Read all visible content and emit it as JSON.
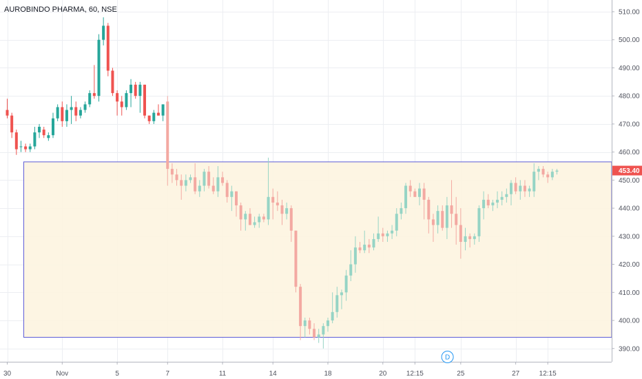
{
  "chart_data": {
    "type": "candlestick",
    "title": "AUROBINDO PHARMA, 60, NSE",
    "symbol": "AUROBINDO PHARMA",
    "interval": "60",
    "exchange": "NSE",
    "ylim": [
      386,
      515
    ],
    "y_ticks": [
      "510.00",
      "500.00",
      "490.00",
      "480.00",
      "470.00",
      "460.00",
      "450.00",
      "440.00",
      "430.00",
      "420.00",
      "410.00",
      "400.00",
      "390.00"
    ],
    "x_ticks": [
      {
        "label": "30",
        "index": 0
      },
      {
        "label": "Nov",
        "index": 12
      },
      {
        "label": "5",
        "index": 24
      },
      {
        "label": "7",
        "index": 35
      },
      {
        "label": "11",
        "index": 47
      },
      {
        "label": "14",
        "index": 58
      },
      {
        "label": "18",
        "index": 70
      },
      {
        "label": "20",
        "index": 82
      },
      {
        "label": "12:15",
        "index": 89
      },
      {
        "label": "25",
        "index": 99
      },
      {
        "label": "27",
        "index": 111
      },
      {
        "label": "12:15",
        "index": 118
      }
    ],
    "last_price": "453.40",
    "date_marker": {
      "label": "D",
      "index": 94
    },
    "zone": {
      "top": 456.5,
      "bottom": 394,
      "start_index": 3
    },
    "colors": {
      "up": "#26a69a",
      "down": "#ef5350",
      "up_light": "#96d4c5",
      "down_light": "#f3a9a2",
      "zone_fill": "#fdf4e0",
      "zone_border": "#5b5bd6",
      "grid": "#eceef2",
      "tag": "#ef5350"
    },
    "candles": [
      [
        0,
        475,
        479,
        472,
        473
      ],
      [
        1,
        473,
        474,
        465,
        467
      ],
      [
        2,
        467,
        468,
        459,
        461
      ],
      [
        3,
        462,
        464,
        460,
        462
      ],
      [
        4,
        462,
        463,
        460,
        461
      ],
      [
        5,
        461,
        463,
        460,
        462
      ],
      [
        6,
        462,
        469,
        461,
        467
      ],
      [
        7,
        467,
        470,
        465,
        469
      ],
      [
        8,
        468,
        469,
        465,
        466
      ],
      [
        9,
        465,
        467,
        464,
        466
      ],
      [
        10,
        466,
        474,
        465,
        472
      ],
      [
        11,
        472,
        477,
        471,
        476
      ],
      [
        12,
        476,
        478,
        469,
        471
      ],
      [
        13,
        471,
        477,
        469,
        475
      ],
      [
        14,
        475,
        480,
        470,
        476
      ],
      [
        15,
        476,
        478,
        471,
        473
      ],
      [
        16,
        473,
        476,
        472,
        475
      ],
      [
        17,
        475,
        478,
        474,
        477
      ],
      [
        18,
        477,
        482,
        476,
        481
      ],
      [
        19,
        481,
        491,
        479,
        480
      ],
      [
        20,
        480,
        502,
        478,
        500
      ],
      [
        21,
        500,
        508,
        498,
        505
      ],
      [
        22,
        505,
        506,
        487,
        489
      ],
      [
        23,
        489,
        490,
        480,
        481
      ],
      [
        24,
        481,
        482,
        473,
        478
      ],
      [
        25,
        478,
        480,
        473,
        476
      ],
      [
        26,
        476,
        482,
        475,
        481
      ],
      [
        27,
        481,
        486,
        476,
        484
      ],
      [
        28,
        484,
        485,
        479,
        480
      ],
      [
        29,
        480,
        485,
        474,
        484
      ],
      [
        30,
        484,
        484,
        472,
        473
      ],
      [
        31,
        473,
        473,
        470,
        471
      ],
      [
        32,
        471,
        475,
        470,
        474
      ],
      [
        33,
        474,
        477,
        473,
        473
      ],
      [
        34,
        473,
        477,
        471,
        477
      ],
      [
        35,
        478,
        480,
        448,
        454
      ],
      [
        36,
        454,
        456,
        449,
        452
      ],
      [
        37,
        452,
        454,
        448,
        450
      ],
      [
        38,
        450,
        452,
        443,
        448
      ],
      [
        39,
        448,
        452,
        446,
        450
      ],
      [
        40,
        450,
        452,
        449,
        451
      ],
      [
        41,
        451,
        456,
        445,
        446
      ],
      [
        42,
        446,
        450,
        444,
        448
      ],
      [
        43,
        448,
        454,
        446,
        453
      ],
      [
        44,
        453,
        455,
        447,
        448
      ],
      [
        45,
        448,
        451,
        445,
        446
      ],
      [
        46,
        446,
        455,
        444,
        451
      ],
      [
        47,
        451,
        453,
        448,
        449
      ],
      [
        48,
        449,
        450,
        442,
        444
      ],
      [
        49,
        444,
        448,
        439,
        446
      ],
      [
        50,
        446,
        446,
        437,
        441
      ],
      [
        51,
        441,
        442,
        432,
        436
      ],
      [
        52,
        436,
        439,
        432,
        438
      ],
      [
        53,
        438,
        440,
        434,
        434
      ],
      [
        54,
        434,
        437,
        433,
        435
      ],
      [
        55,
        435,
        438,
        433,
        437
      ],
      [
        56,
        437,
        438,
        435,
        436
      ],
      [
        57,
        436,
        458,
        434,
        444
      ],
      [
        58,
        444,
        447,
        436,
        442
      ],
      [
        59,
        442,
        446,
        439,
        441
      ],
      [
        60,
        441,
        443,
        434,
        438
      ],
      [
        61,
        438,
        442,
        436,
        440
      ],
      [
        62,
        440,
        441,
        428,
        432
      ],
      [
        63,
        432,
        432,
        410,
        412
      ],
      [
        64,
        412,
        413,
        393,
        398
      ],
      [
        65,
        398,
        401,
        394,
        400
      ],
      [
        66,
        400,
        401,
        395,
        397
      ],
      [
        67,
        397,
        399,
        393,
        394
      ],
      [
        68,
        394,
        397,
        392,
        395
      ],
      [
        69,
        395,
        399,
        390,
        398
      ],
      [
        70,
        398,
        401,
        396,
        400
      ],
      [
        71,
        400,
        410,
        399,
        403
      ],
      [
        72,
        403,
        412,
        401,
        409
      ],
      [
        73,
        409,
        411,
        404,
        410
      ],
      [
        74,
        410,
        418,
        407,
        416
      ],
      [
        75,
        416,
        425,
        414,
        420
      ],
      [
        76,
        420,
        430,
        417,
        426
      ],
      [
        77,
        426,
        428,
        424,
        425
      ],
      [
        78,
        425,
        432,
        424,
        427
      ],
      [
        79,
        427,
        429,
        424,
        426
      ],
      [
        80,
        426,
        431,
        425,
        429
      ],
      [
        81,
        429,
        437,
        428,
        431
      ],
      [
        82,
        431,
        433,
        428,
        430
      ],
      [
        83,
        430,
        432,
        428,
        431
      ],
      [
        84,
        431,
        434,
        429,
        432
      ],
      [
        85,
        432,
        440,
        430,
        438
      ],
      [
        86,
        438,
        442,
        436,
        440
      ],
      [
        87,
        440,
        449,
        438,
        448
      ],
      [
        88,
        448,
        450,
        444,
        446
      ],
      [
        89,
        446,
        447,
        444,
        444
      ],
      [
        90,
        444,
        449,
        441,
        447
      ],
      [
        91,
        447,
        449,
        436,
        443
      ],
      [
        92,
        443,
        444,
        431,
        436
      ],
      [
        93,
        436,
        438,
        428,
        434
      ],
      [
        94,
        434,
        441,
        431,
        439
      ],
      [
        95,
        439,
        441,
        432,
        433
      ],
      [
        96,
        433,
        444,
        429,
        441
      ],
      [
        97,
        441,
        450,
        433,
        438
      ],
      [
        98,
        438,
        444,
        427,
        434
      ],
      [
        99,
        434,
        440,
        422,
        428
      ],
      [
        100,
        428,
        433,
        425,
        430
      ],
      [
        101,
        430,
        431,
        426,
        429
      ],
      [
        102,
        429,
        431,
        427,
        430
      ],
      [
        103,
        430,
        441,
        428,
        440
      ],
      [
        104,
        440,
        446,
        436,
        443
      ],
      [
        105,
        443,
        445,
        440,
        441
      ],
      [
        106,
        441,
        443,
        439,
        442
      ],
      [
        107,
        442,
        446,
        440,
        443
      ],
      [
        108,
        443,
        446,
        441,
        444
      ],
      [
        109,
        444,
        447,
        442,
        445
      ],
      [
        110,
        445,
        450,
        441,
        449
      ],
      [
        111,
        449,
        451,
        445,
        446
      ],
      [
        112,
        446,
        450,
        443,
        448
      ],
      [
        113,
        448,
        450,
        444,
        446
      ],
      [
        114,
        446,
        448,
        444,
        447
      ],
      [
        115,
        446,
        456,
        444,
        453
      ],
      [
        116,
        453,
        455,
        450,
        454
      ],
      [
        117,
        454,
        455,
        451,
        452
      ],
      [
        118,
        452,
        453,
        449,
        451
      ],
      [
        119,
        451,
        454,
        450,
        453
      ],
      [
        120,
        453,
        454,
        452,
        453.4
      ]
    ]
  }
}
